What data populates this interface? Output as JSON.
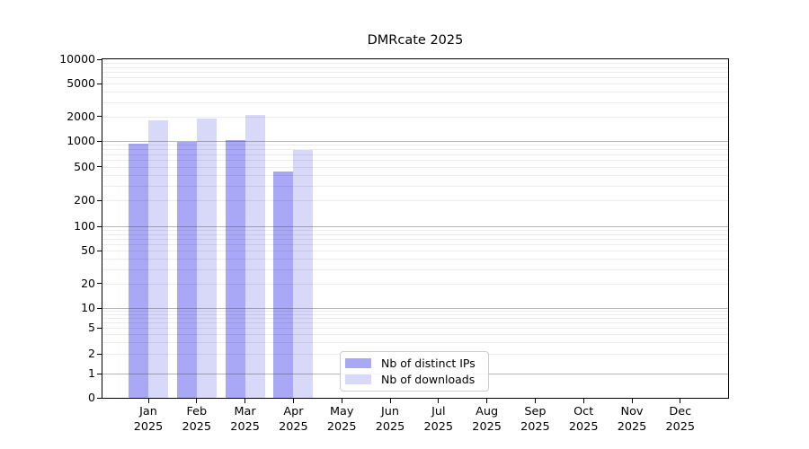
{
  "chart_data": {
    "type": "bar",
    "title": "DMRcate 2025",
    "scale": "log-like (ticks 0,1,2,5,...,10000), zero pinned at axis bottom",
    "grid": true,
    "legend_position": "inside bottom, left of center",
    "categories": [
      "Jan 2025",
      "Feb 2025",
      "Mar 2025",
      "Apr 2025",
      "May 2025",
      "Jun 2025",
      "Jul 2025",
      "Aug 2025",
      "Sep 2025",
      "Oct 2025",
      "Nov 2025",
      "Dec 2025"
    ],
    "series": [
      {
        "name": "Nb of distinct IPs",
        "color": "#a8a8f6",
        "values": [
          930,
          975,
          1020,
          435,
          null,
          null,
          null,
          null,
          null,
          null,
          null,
          null
        ]
      },
      {
        "name": "Nb of downloads",
        "color": "#d8d8f8",
        "values": [
          1780,
          1870,
          2060,
          785,
          null,
          null,
          null,
          null,
          null,
          null,
          null,
          null
        ]
      }
    ],
    "y_ticks": [
      0,
      1,
      2,
      5,
      10,
      20,
      50,
      100,
      200,
      500,
      1000,
      2000,
      5000,
      10000
    ],
    "ylim": [
      0,
      10000
    ],
    "xlabel": "",
    "ylabel": ""
  }
}
